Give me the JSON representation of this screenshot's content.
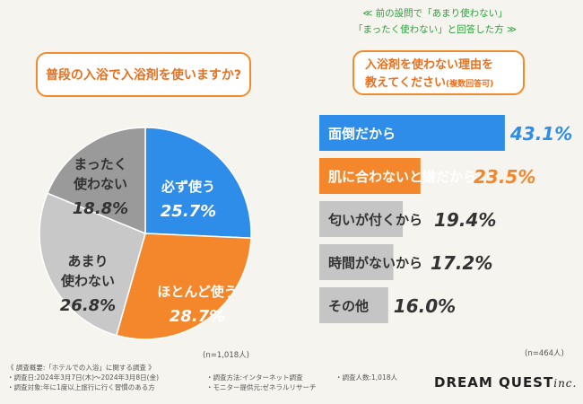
{
  "left_question": "普段の入浴で入浴剤を使いますか?",
  "note_lines": [
    "≪ 前の設問で「あまり使わない」",
    "「まったく使わない」と回答した方 ≫"
  ],
  "right_question": {
    "line1": "入浴剤を使わない理由を",
    "line2": "教えてください",
    "suffix": "(複数回答可)"
  },
  "colors": {
    "accent_orange": "#f4862c",
    "accent_blue": "#2e8de8",
    "gray_light": "#c8c8c8",
    "gray_dark": "#9a9a9a",
    "bar_gray": "#c5c5c5"
  },
  "chart_data": [
    {
      "type": "pie",
      "title": "普段の入浴で入浴剤を使いますか?",
      "categories": [
        "必ず使う",
        "ほとんど使う",
        "あまり使わない",
        "まったく使わない"
      ],
      "values": [
        25.7,
        28.7,
        26.8,
        18.8
      ],
      "labels": [
        {
          "lines": [
            "必ず使う"
          ],
          "pct": "25.7%"
        },
        {
          "lines": [
            "ほとんど使う"
          ],
          "pct": "28.7%"
        },
        {
          "lines": [
            "あまり",
            "使わない"
          ],
          "pct": "26.8%"
        },
        {
          "lines": [
            "まったく",
            "使わない"
          ],
          "pct": "18.8%"
        }
      ],
      "note": "(n=1,018人)"
    },
    {
      "type": "bar",
      "orientation": "horizontal",
      "title": "入浴剤を使わない理由を教えてください(複数回答可)",
      "categories": [
        "面倒だから",
        "肌に合わないと嫌だから",
        "匂いが付くから",
        "時間がないから",
        "その他"
      ],
      "values": [
        43.1,
        23.5,
        19.4,
        17.2,
        16.0
      ],
      "value_labels": [
        "43.1%",
        "23.5%",
        "19.4%",
        "17.2%",
        "16.0%"
      ],
      "note": "(n=464人)"
    }
  ],
  "footer": {
    "title": "《 調査概要:「ホテルでの入浴」に関する調査 》",
    "date": "・調査日:2024年3月7日(木)〜2024年3月8日(金)",
    "target": "・調査対象:年に1度以上旅行に行く習慣のある方",
    "method": "・調査方法:インターネット調査",
    "provider": "・モニター提供元:ゼネラルリサーチ",
    "count": "・調査人数:1,018人"
  },
  "brand": {
    "name": "DREAM QUEST",
    "suffix": "inc."
  }
}
